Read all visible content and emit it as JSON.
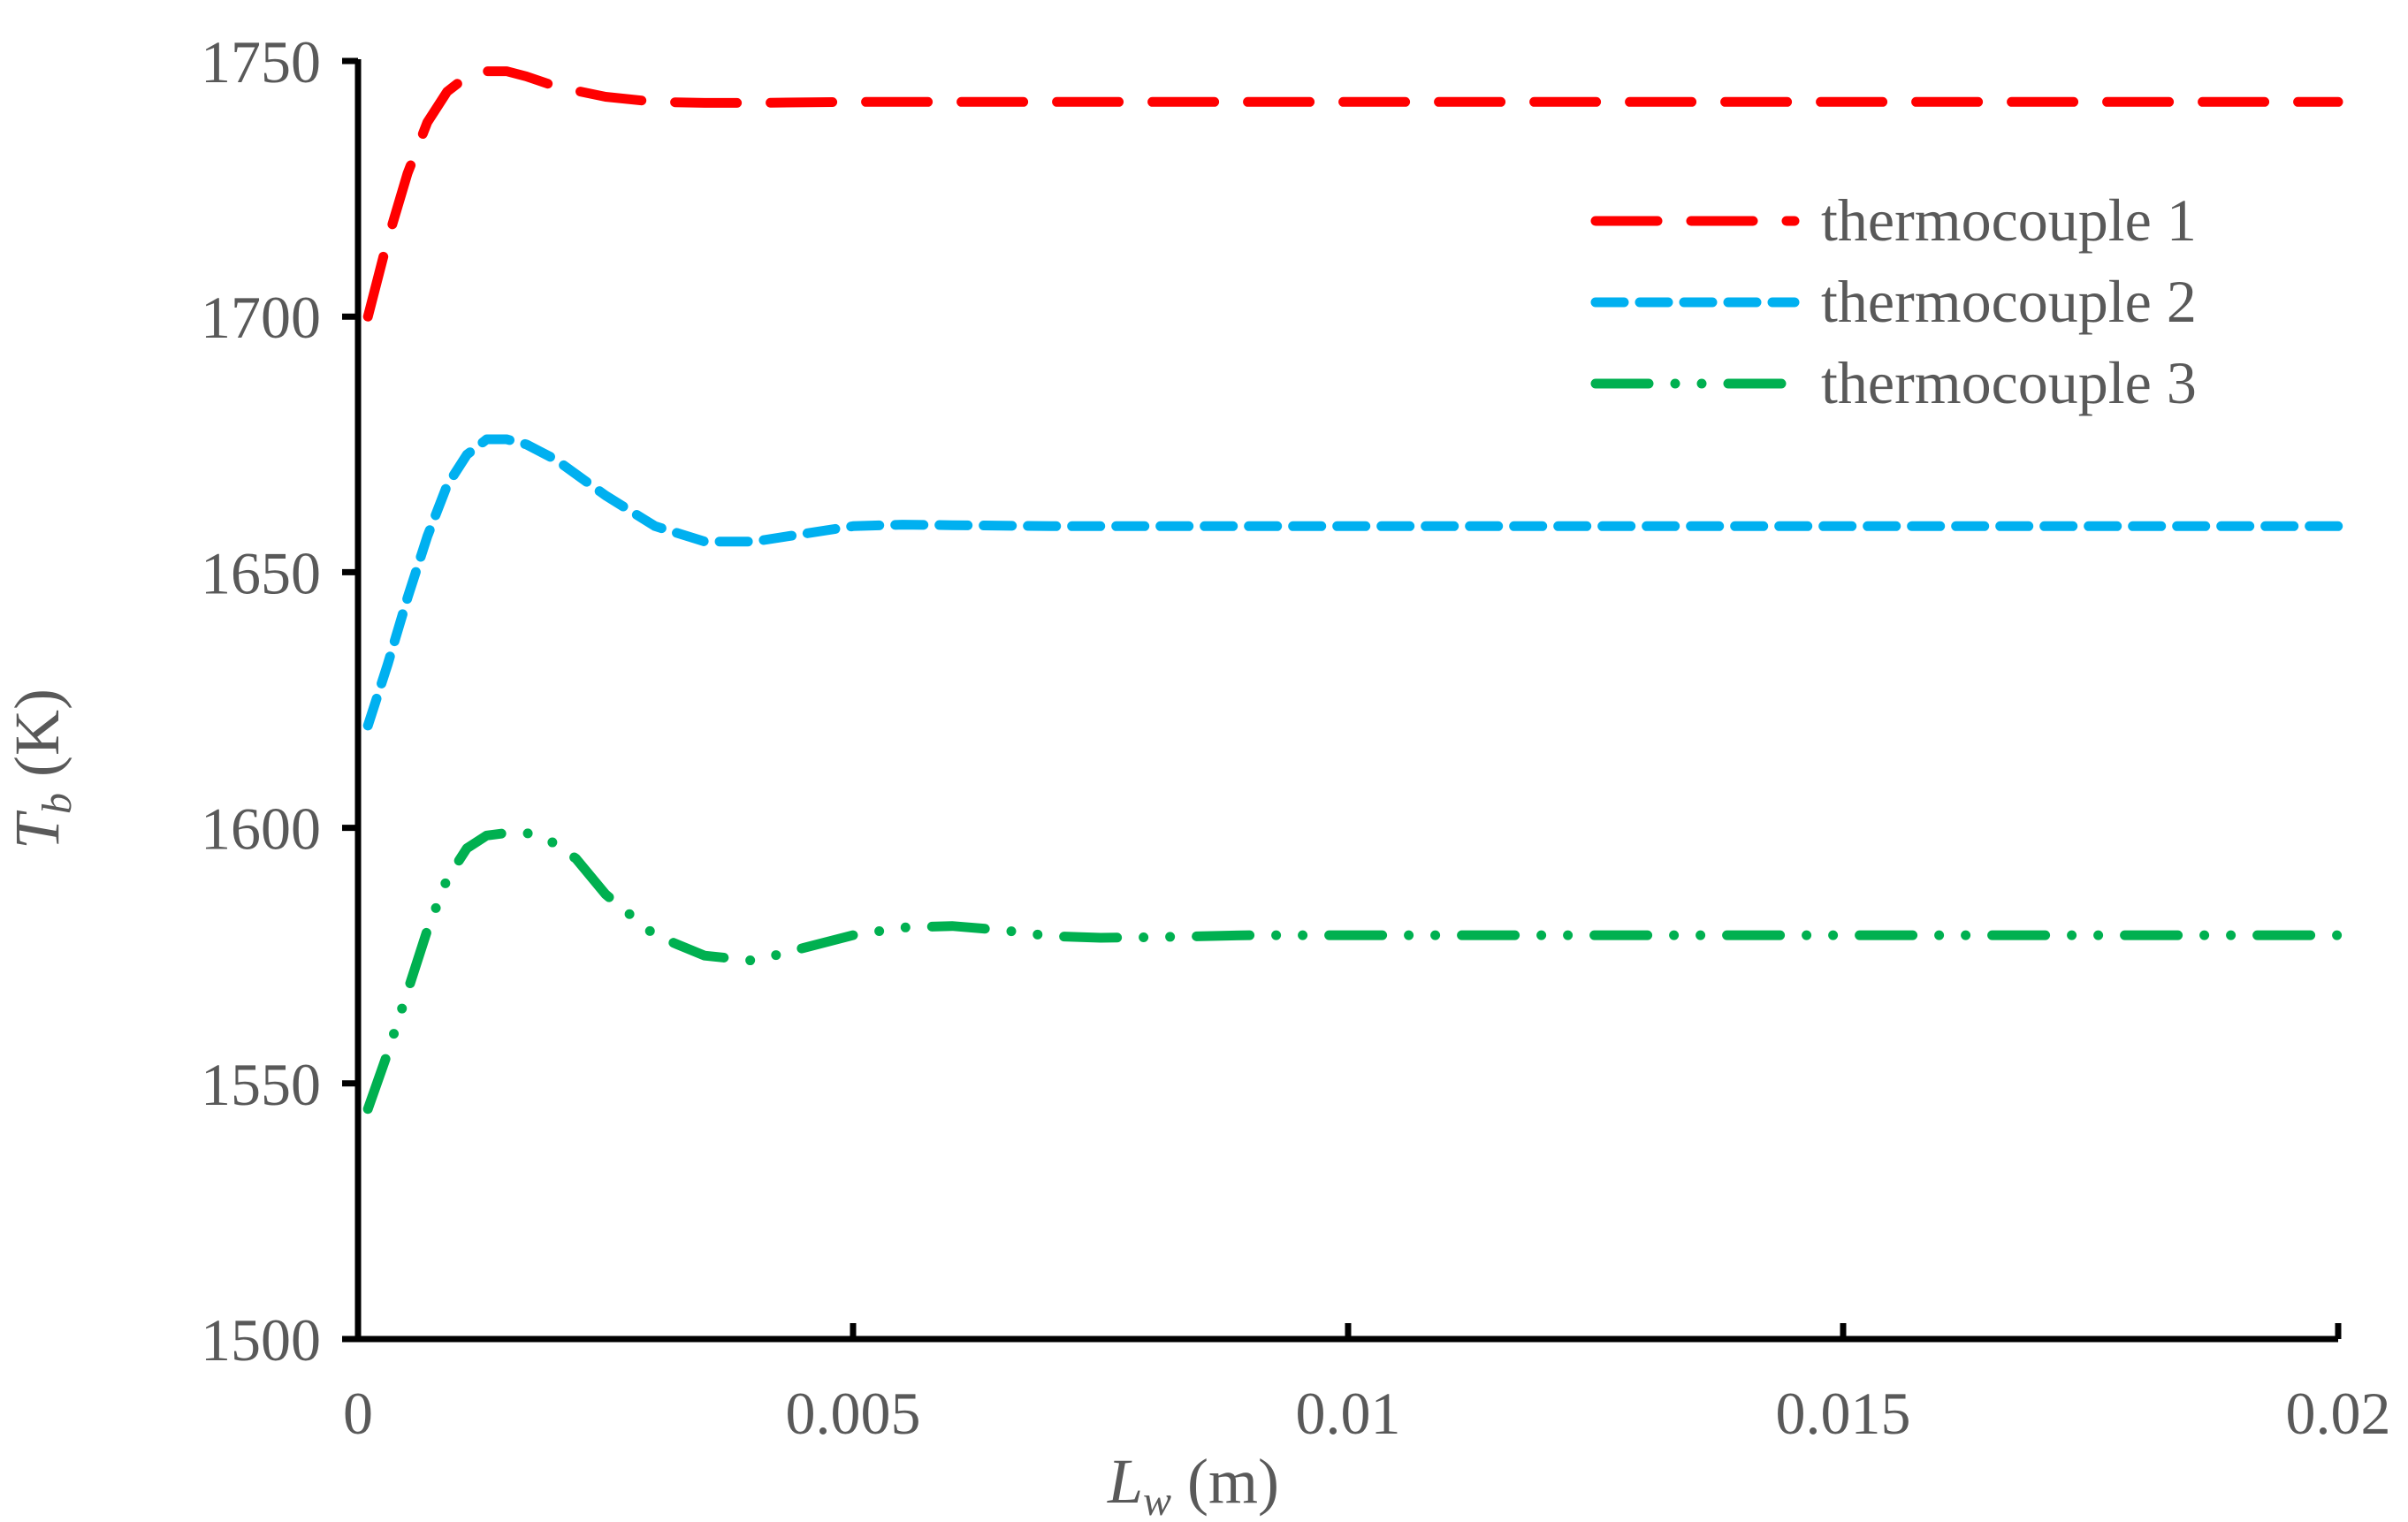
{
  "chart_data": {
    "type": "line",
    "xlabel": {
      "main": "L",
      "sub": "w",
      "unit": " (m)"
    },
    "ylabel": {
      "main": "T",
      "sub": "b",
      "unit": " (K)"
    },
    "xlim": [
      0,
      0.02
    ],
    "ylim": [
      1500,
      1750
    ],
    "xticks": [
      0,
      0.005,
      0.01,
      0.015,
      0.02
    ],
    "xtick_labels": [
      "0",
      "0.005",
      "0.01",
      "0.015",
      "0.02"
    ],
    "yticks": [
      1500,
      1550,
      1600,
      1650,
      1700,
      1750
    ],
    "ytick_labels": [
      "1500",
      "1550",
      "1600",
      "1650",
      "1700",
      "1750"
    ],
    "grid": false,
    "legend_position": "top-right",
    "series": [
      {
        "name": "thermocouple 1",
        "color": "#ff0000",
        "style": "long-dash",
        "points": [
          [
            0.0001,
            1700
          ],
          [
            0.0003,
            1715
          ],
          [
            0.0005,
            1728
          ],
          [
            0.0007,
            1738
          ],
          [
            0.0009,
            1744
          ],
          [
            0.0011,
            1747
          ],
          [
            0.0013,
            1748
          ],
          [
            0.0015,
            1748
          ],
          [
            0.0017,
            1747
          ],
          [
            0.002,
            1745
          ],
          [
            0.0025,
            1743
          ],
          [
            0.003,
            1742
          ],
          [
            0.0035,
            1741.8
          ],
          [
            0.004,
            1741.8
          ],
          [
            0.005,
            1742
          ],
          [
            0.007,
            1742
          ],
          [
            0.01,
            1742
          ],
          [
            0.015,
            1742
          ],
          [
            0.02,
            1742
          ]
        ]
      },
      {
        "name": "thermocouple 2",
        "color": "#00b0f0",
        "style": "short-dash",
        "points": [
          [
            0.0001,
            1620
          ],
          [
            0.0003,
            1632
          ],
          [
            0.0005,
            1645
          ],
          [
            0.0007,
            1657
          ],
          [
            0.0009,
            1667
          ],
          [
            0.0011,
            1673
          ],
          [
            0.0013,
            1676
          ],
          [
            0.0015,
            1676
          ],
          [
            0.0017,
            1675
          ],
          [
            0.002,
            1672
          ],
          [
            0.0025,
            1665
          ],
          [
            0.003,
            1659
          ],
          [
            0.0035,
            1656
          ],
          [
            0.004,
            1656
          ],
          [
            0.0045,
            1657.5
          ],
          [
            0.005,
            1659
          ],
          [
            0.0055,
            1659.3
          ],
          [
            0.006,
            1659.2
          ],
          [
            0.007,
            1659
          ],
          [
            0.01,
            1659
          ],
          [
            0.015,
            1659
          ],
          [
            0.02,
            1659
          ]
        ]
      },
      {
        "name": "thermocouple 3",
        "color": "#00b050",
        "style": "dash-dot-dot",
        "points": [
          [
            0.0001,
            1545
          ],
          [
            0.0003,
            1556
          ],
          [
            0.0005,
            1568
          ],
          [
            0.0007,
            1580
          ],
          [
            0.0009,
            1590
          ],
          [
            0.0011,
            1596
          ],
          [
            0.0013,
            1598.5
          ],
          [
            0.0015,
            1599
          ],
          [
            0.0017,
            1599
          ],
          [
            0.0019,
            1598
          ],
          [
            0.0022,
            1594
          ],
          [
            0.0025,
            1587
          ],
          [
            0.003,
            1579
          ],
          [
            0.0035,
            1575
          ],
          [
            0.004,
            1574
          ],
          [
            0.0045,
            1576.5
          ],
          [
            0.005,
            1579
          ],
          [
            0.0055,
            1580.5
          ],
          [
            0.006,
            1580.8
          ],
          [
            0.0065,
            1580
          ],
          [
            0.007,
            1578.8
          ],
          [
            0.0075,
            1578.5
          ],
          [
            0.008,
            1578.6
          ],
          [
            0.009,
            1579
          ],
          [
            0.01,
            1579
          ],
          [
            0.015,
            1579
          ],
          [
            0.02,
            1579
          ]
        ]
      }
    ]
  }
}
